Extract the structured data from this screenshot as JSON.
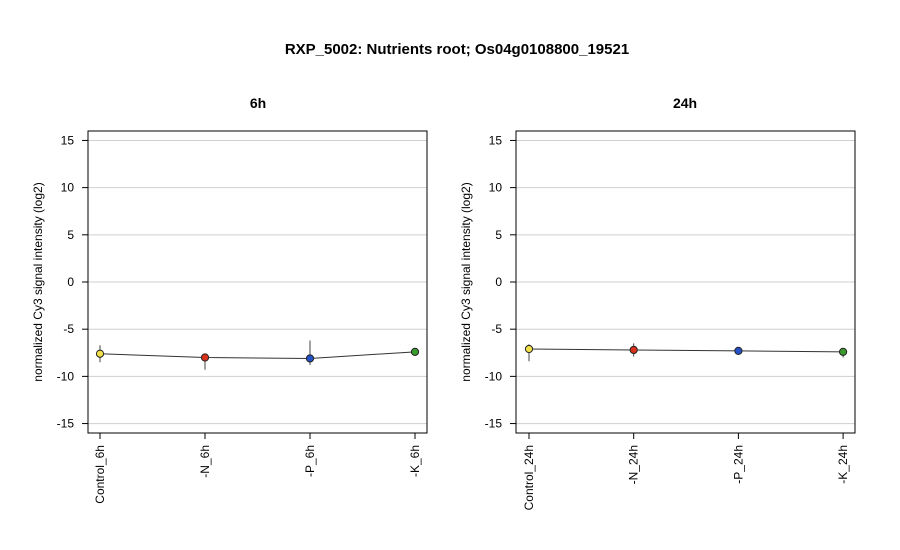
{
  "figure_title": "RXP_5002: Nutrients root; Os04g0108800_19521",
  "chart_data": [
    {
      "type": "line",
      "title": "6h",
      "xlabel": "",
      "ylabel": "normalized Cy3 signal intensity (log2)",
      "ylim": [
        -16,
        16
      ],
      "yticks": [
        -15,
        -10,
        -5,
        0,
        5,
        10,
        15
      ],
      "ytick_labels": [
        "-15",
        "-10",
        "-5",
        "0",
        "5",
        "10",
        "15"
      ],
      "grid": "horizontal",
      "categories": [
        "Control_6h",
        "-N_6h",
        "-P_6h",
        "-K_6h"
      ],
      "values": [
        -7.6,
        -8.0,
        -8.1,
        -7.4
      ],
      "error_low": [
        -8.5,
        -9.3,
        -8.8,
        -7.7
      ],
      "error_high": [
        -6.7,
        -7.8,
        -6.2,
        -7.2
      ],
      "point_colors": [
        "#f2e04a",
        "#d9301c",
        "#2451c7",
        "#3a9a2e"
      ]
    },
    {
      "type": "line",
      "title": "24h",
      "xlabel": "",
      "ylabel": "normalized Cy3 signal intensity (log2)",
      "ylim": [
        -16,
        16
      ],
      "yticks": [
        -15,
        -10,
        -5,
        0,
        5,
        10,
        15
      ],
      "ytick_labels": [
        "-15",
        "-10",
        "-5",
        "0",
        "5",
        "10",
        "15"
      ],
      "grid": "horizontal",
      "categories": [
        "Control_24h",
        "-N_24h",
        "-P_24h",
        "-K_24h"
      ],
      "values": [
        -7.1,
        -7.2,
        -7.3,
        -7.4
      ],
      "error_low": [
        -8.4,
        -7.9,
        -7.4,
        -8.0
      ],
      "error_high": [
        -6.6,
        -6.5,
        -7.2,
        -7.0
      ],
      "point_colors": [
        "#f2e04a",
        "#d9301c",
        "#2451c7",
        "#3a9a2e"
      ]
    }
  ]
}
